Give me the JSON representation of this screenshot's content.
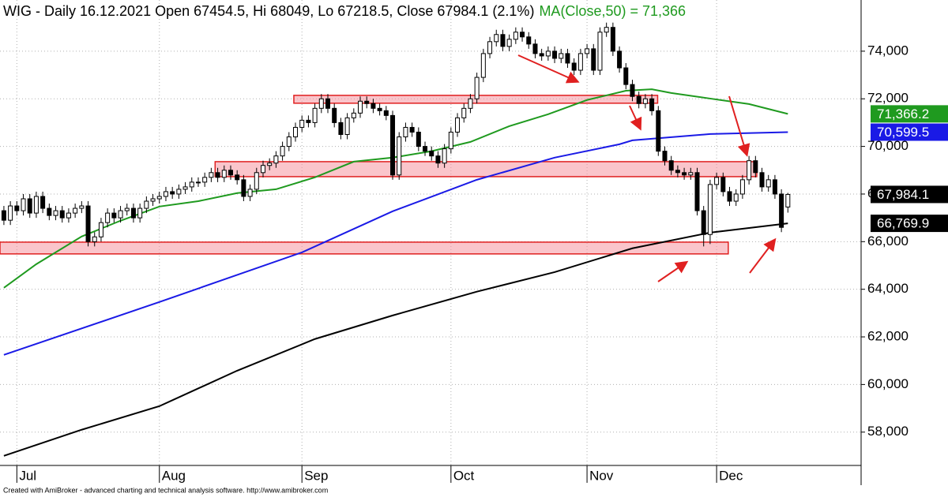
{
  "chart_data": {
    "type": "candlestick",
    "title": "WIG - Daily 16.12.2021 Open 67454.5, Hi 68049, Lo 67218.5, Close 67984.1 (2.1%)",
    "ma_legend": "MA(Close,50) = 71,366",
    "xlim": [
      -0.6,
      132.3
    ],
    "ylim": [
      56600,
      76150
    ],
    "grid": true,
    "up_color": "#ffffff",
    "down_color": "#000000",
    "yticks": [
      {
        "value": 58000,
        "label": "58,000"
      },
      {
        "value": 60000,
        "label": "60,000"
      },
      {
        "value": 62000,
        "label": "62,000"
      },
      {
        "value": 64000,
        "label": "64,000"
      },
      {
        "value": 66000,
        "label": "66,000"
      },
      {
        "value": 68000,
        "label": "68,000"
      },
      {
        "value": 70000,
        "label": "70,000"
      },
      {
        "value": 72000,
        "label": "72,000"
      },
      {
        "value": 74000,
        "label": "74,000"
      }
    ],
    "xticks": [
      {
        "value": 2,
        "label": "Jul"
      },
      {
        "value": 24,
        "label": "Aug"
      },
      {
        "value": 46,
        "label": "Sep"
      },
      {
        "value": 69,
        "label": "Oct"
      },
      {
        "value": 90,
        "label": "Nov"
      },
      {
        "value": 110,
        "label": "Dec"
      }
    ],
    "candles": {
      "open": [
        67300,
        66900,
        67500,
        67300,
        67800,
        67200,
        67900,
        67400,
        67100,
        67300,
        67000,
        67200,
        67400,
        67500,
        66000,
        66200,
        66800,
        67200,
        67000,
        67300,
        67400,
        67000,
        67400,
        67700,
        67800,
        67900,
        68100,
        68000,
        68200,
        68300,
        68500,
        68500,
        68700,
        68900,
        68700,
        69000,
        68800,
        68600,
        67900,
        68200,
        68900,
        69200,
        69300,
        69600,
        70000,
        70400,
        70800,
        71100,
        71000,
        71600,
        72000,
        71600,
        71000,
        70500,
        71200,
        71400,
        71900,
        71800,
        71600,
        71500,
        71300,
        68800,
        70400,
        70800,
        70600,
        70000,
        69800,
        69600,
        69300,
        69900,
        70600,
        71200,
        71600,
        72000,
        72900,
        73900,
        74400,
        74700,
        74200,
        74500,
        74800,
        74600,
        74300,
        73900,
        73800,
        74000,
        73700,
        73900,
        73500,
        73200,
        73900,
        74100,
        73200,
        74800,
        75000,
        74000,
        73300,
        72600,
        72100,
        71800,
        72000,
        71500,
        69800,
        69400,
        69000,
        68900,
        68800,
        68900,
        67300,
        66300,
        68400,
        68700,
        68100,
        67700,
        68000,
        68600,
        69400,
        68900,
        68300,
        68600,
        68000,
        67454.5
      ],
      "high": [
        67500,
        67700,
        67700,
        68000,
        68000,
        68100,
        68100,
        67600,
        67500,
        67500,
        67400,
        67600,
        67700,
        67700,
        66400,
        67000,
        67400,
        67400,
        67500,
        67600,
        67600,
        67600,
        67900,
        68000,
        68100,
        68300,
        68300,
        68400,
        68500,
        68700,
        68700,
        68900,
        69100,
        69100,
        69200,
        69200,
        69000,
        68800,
        68400,
        69100,
        69400,
        69500,
        69800,
        70200,
        70600,
        71000,
        71300,
        71300,
        71800,
        72200,
        72200,
        71800,
        71200,
        71400,
        71600,
        72100,
        72100,
        72000,
        71800,
        71700,
        71500,
        70600,
        71000,
        71000,
        70800,
        70200,
        70000,
        69800,
        70100,
        70800,
        71400,
        71800,
        72200,
        73100,
        74100,
        74600,
        74900,
        74900,
        74700,
        75000,
        75000,
        74800,
        74500,
        74100,
        74200,
        74200,
        74100,
        74100,
        73700,
        74100,
        74300,
        74300,
        75000,
        75200,
        75200,
        74200,
        73500,
        72800,
        72300,
        72200,
        72200,
        71700,
        70000,
        69600,
        69200,
        69100,
        69100,
        69100,
        67500,
        68600,
        68900,
        68900,
        68300,
        68200,
        68800,
        69600,
        69600,
        69100,
        68800,
        68800,
        68200,
        68049
      ],
      "low": [
        66700,
        66700,
        67100,
        67100,
        67000,
        67000,
        67200,
        66900,
        66900,
        66800,
        66800,
        67000,
        67200,
        65800,
        65800,
        66000,
        66600,
        66800,
        66800,
        67100,
        66800,
        66800,
        67200,
        67500,
        67600,
        67700,
        67800,
        67800,
        68000,
        68100,
        68300,
        68300,
        68500,
        68500,
        68500,
        68600,
        68400,
        67700,
        67700,
        68000,
        68700,
        69000,
        69100,
        69400,
        69800,
        70200,
        70600,
        70800,
        70800,
        71400,
        71400,
        70800,
        70300,
        70300,
        71000,
        71200,
        71600,
        71400,
        71300,
        71100,
        68600,
        68600,
        70200,
        70400,
        69800,
        69600,
        69400,
        69100,
        69100,
        69700,
        70400,
        71000,
        71400,
        71800,
        72700,
        73700,
        74200,
        74000,
        74000,
        74300,
        74400,
        74100,
        73700,
        73600,
        73600,
        73500,
        73500,
        73300,
        73000,
        73000,
        73700,
        73000,
        73000,
        74600,
        73800,
        73100,
        72400,
        71900,
        71600,
        71600,
        71300,
        69600,
        69200,
        68800,
        68700,
        68600,
        68600,
        67100,
        65800,
        65900,
        68200,
        67900,
        67500,
        67500,
        67800,
        68400,
        68700,
        68100,
        68100,
        67800,
        66400,
        67218.5
      ],
      "close": [
        66900,
        67500,
        67300,
        67800,
        67200,
        67900,
        67400,
        67100,
        67300,
        67000,
        67200,
        67400,
        67500,
        66000,
        66200,
        66800,
        67200,
        67000,
        67300,
        67400,
        67000,
        67400,
        67700,
        67800,
        67900,
        68100,
        68000,
        68200,
        68300,
        68500,
        68500,
        68700,
        68900,
        68700,
        69000,
        68800,
        68600,
        67900,
        68200,
        68900,
        69200,
        69300,
        69600,
        70000,
        70400,
        70800,
        71100,
        71000,
        71600,
        72000,
        71600,
        71000,
        70500,
        71200,
        71400,
        71900,
        71800,
        71600,
        71500,
        71300,
        68800,
        70400,
        70800,
        70600,
        70000,
        69800,
        69600,
        69300,
        69900,
        70600,
        71200,
        71600,
        72000,
        72900,
        73900,
        74400,
        74700,
        74200,
        74500,
        74800,
        74600,
        74300,
        73900,
        73800,
        74000,
        73700,
        73900,
        73500,
        73200,
        73900,
        74100,
        73200,
        74800,
        75000,
        74000,
        73300,
        72600,
        72100,
        71800,
        72000,
        71500,
        69800,
        69400,
        69000,
        68900,
        68800,
        68900,
        67300,
        66300,
        68400,
        68700,
        68100,
        67700,
        68000,
        68600,
        69400,
        68900,
        68300,
        68600,
        68000,
        66600,
        67984.1
      ]
    },
    "ma": [
      {
        "color": "#1f9a1f",
        "x": [
          0,
          5,
          12,
          18,
          24,
          30,
          36,
          42,
          48,
          54,
          60,
          66,
          72,
          78,
          84,
          90,
          96,
          100,
          103,
          109,
          115,
          121
        ],
        "values": [
          64060,
          65055,
          66215,
          66880,
          67475,
          67700,
          68040,
          68200,
          68700,
          69360,
          69530,
          69800,
          70190,
          70850,
          71350,
          71950,
          72340,
          72400,
          72245,
          72010,
          71780,
          71366.2
        ]
      },
      {
        "color": "#1a1ae6",
        "x": [
          0,
          24,
          46,
          60,
          73,
          85,
          95,
          97,
          109,
          121
        ],
        "values": [
          61245,
          63465,
          65550,
          67275,
          68600,
          69530,
          70090,
          70256,
          70520,
          70599.5
        ]
      },
      {
        "color": "#000000",
        "x": [
          0,
          12,
          24,
          36,
          48,
          60,
          73,
          85,
          97,
          109,
          121
        ],
        "values": [
          57005,
          58100,
          59090,
          60580,
          61910,
          62900,
          63900,
          64720,
          65720,
          66380,
          66769.9
        ]
      }
    ],
    "zones": [
      {
        "x0": 44.75,
        "x1": 100.9,
        "y0": 71815,
        "y1": 72145
      },
      {
        "x0": 32.6,
        "x1": 116.2,
        "y0": 68730,
        "y1": 69360
      },
      {
        "x0": -0.6,
        "x1": 111.8,
        "y0": 65485,
        "y1": 65980
      }
    ],
    "last_labels": [
      {
        "value": 71366.2,
        "label": "71,366.2",
        "color": "#1f9a1f",
        "text_color": "#ffffff"
      },
      {
        "value": 70599.5,
        "label": "70,599.5",
        "color": "#1a1ae6",
        "text_color": "#ffffff"
      },
      {
        "value": 67984.1,
        "label": "67,984.1",
        "color": "#000000",
        "text_color": "#ffffff"
      },
      {
        "value": 66769.9,
        "label": "66,769.9",
        "color": "#000000",
        "text_color": "#ffffff"
      }
    ]
  },
  "footer": "Created with AmiBroker - advanced charting and technical analysis software. http://www.amibroker.com"
}
